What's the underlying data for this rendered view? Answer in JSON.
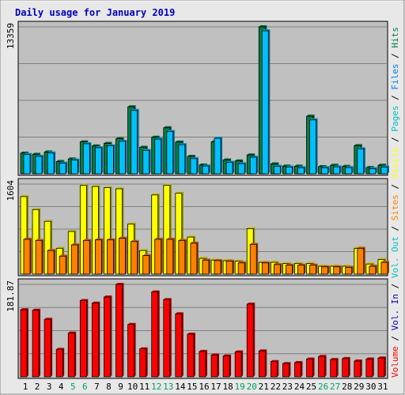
{
  "chart_data": {
    "type": "bar",
    "title": "Daily usage for January 2019",
    "categories": [
      "1",
      "2",
      "3",
      "4",
      "5",
      "6",
      "7",
      "8",
      "9",
      "10",
      "11",
      "12",
      "13",
      "14",
      "15",
      "16",
      "17",
      "18",
      "19",
      "20",
      "21",
      "22",
      "23",
      "24",
      "25",
      "26",
      "27",
      "28",
      "29",
      "30",
      "31"
    ],
    "weekend_days": [
      "5",
      "6",
      "12",
      "13",
      "19",
      "20",
      "26",
      "27"
    ],
    "panels": [
      {
        "id": "hits-files",
        "axis_label": "13359",
        "ylim": [
          0,
          13359
        ],
        "series": [
          {
            "name": "Hits",
            "color": "#008040",
            "values": [
              1880,
              1770,
              1980,
              1110,
              1350,
              2900,
              2530,
              2760,
              3190,
              6090,
              2410,
              3320,
              4180,
              2880,
              1580,
              800,
              2900,
              1260,
              1170,
              1710,
              13359,
              900,
              700,
              690,
              5230,
              650,
              770,
              670,
              2560,
              570,
              770
            ]
          },
          {
            "name": "Files",
            "color": "#00c0ff",
            "values": [
              1760,
              1590,
              1890,
              970,
              1250,
              2730,
              2370,
              2550,
              2950,
              5760,
              2120,
              3150,
              3850,
              2650,
              1380,
              710,
              3230,
              1040,
              920,
              1510,
              13000,
              680,
              610,
              560,
              4900,
              560,
              630,
              570,
              2270,
              470,
              620
            ]
          }
        ]
      },
      {
        "id": "pages-visits-sites",
        "axis_label": "1604",
        "ylim": [
          0,
          1604
        ],
        "series": [
          {
            "name": "Pages",
            "color": "#00c0c0",
            "values": []
          },
          {
            "name": "Visits",
            "color": "#ffff00",
            "values": [
              1380,
              1150,
              940,
              460,
              760,
              1580,
              1560,
              1540,
              1520,
              890,
              420,
              1410,
              1580,
              1440,
              660,
              280,
              250,
              240,
              230,
              810,
              210,
              210,
              190,
              190,
              190,
              140,
              140,
              140,
              460,
              180,
              260
            ]
          },
          {
            "name": "Sites",
            "color": "#ff8000",
            "values": [
              620,
              600,
              420,
              320,
              520,
              600,
              610,
              610,
              640,
              580,
              330,
              620,
              620,
              600,
              550,
              250,
              240,
              230,
              200,
              530,
              200,
              170,
              160,
              160,
              160,
              130,
              130,
              120,
              460,
              140,
              210
            ]
          }
        ]
      },
      {
        "id": "volume",
        "axis_label": "181.87",
        "ylim": [
          0,
          181.87
        ],
        "series": [
          {
            "name": "Vol. Out",
            "color": "#00c0c0",
            "values": []
          },
          {
            "name": "Vol. In",
            "color": "#0000c0",
            "values": []
          },
          {
            "name": "Volume",
            "color": "#ff0000",
            "values": [
              132,
              131,
              113,
              54,
              86,
              150,
              145,
              157,
              181.87,
              103,
              55,
              167,
              152,
              124,
              84,
              50,
              43,
              41,
              49,
              143,
              51,
              30,
              26,
              28,
              35,
              40,
              34,
              36,
              31,
              35,
              37
            ]
          }
        ]
      }
    ],
    "legend_placement": "right-vertical",
    "legend": [
      {
        "text": "Volume",
        "color": "#ff0000"
      },
      {
        "text": " / ",
        "color": "#000000"
      },
      {
        "text": "Vol. In",
        "color": "#0000c0"
      },
      {
        "text": " / ",
        "color": "#000000"
      },
      {
        "text": "Vol. Out",
        "color": "#00c0c0"
      },
      {
        "text": " / ",
        "color": "#000000"
      },
      {
        "text": "Sites",
        "color": "#ff8000"
      },
      {
        "text": " / ",
        "color": "#000000"
      },
      {
        "text": "Visits",
        "color": "#ffff00"
      },
      {
        "text": " / ",
        "color": "#000000"
      },
      {
        "text": "Pages",
        "color": "#00c0c0"
      },
      {
        "text": " / ",
        "color": "#000000"
      },
      {
        "text": "Files",
        "color": "#0080ff"
      },
      {
        "text": " / ",
        "color": "#000000"
      },
      {
        "text": "Hits",
        "color": "#008040"
      }
    ],
    "colors": {
      "title": "#0000c0",
      "panel_background": "#c0c0c0",
      "frame_background": "#e8e8e8",
      "grid": "#808080",
      "weekday_label": "#000000",
      "weekend_label": "#00a060"
    }
  }
}
